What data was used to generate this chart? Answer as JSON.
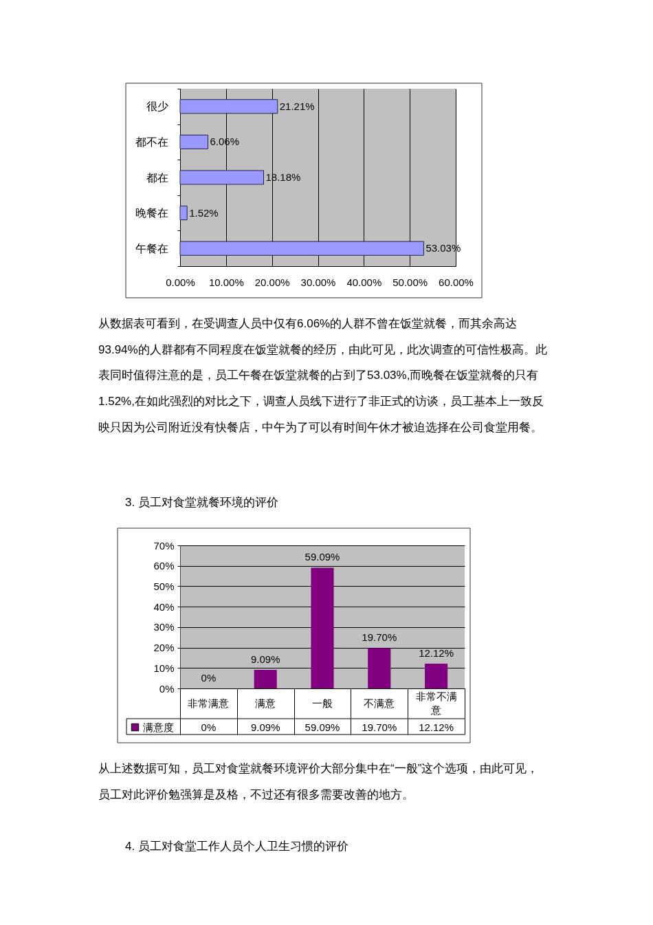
{
  "chart_data": [
    {
      "type": "bar",
      "orientation": "horizontal",
      "categories": [
        "很少",
        "都不在",
        "都在",
        "晚餐在",
        "午餐在"
      ],
      "values": [
        21.21,
        6.06,
        18.18,
        1.52,
        53.03
      ],
      "color": "#9999ff",
      "value_labels": [
        "21.21%",
        "6.06%",
        "18.18%",
        "1.52%",
        "53.03%"
      ],
      "xlim": [
        0,
        60
      ],
      "xticks": [
        {
          "value": 0,
          "label": "0.00%"
        },
        {
          "value": 10,
          "label": "10.00%"
        },
        {
          "value": 20,
          "label": "20.00%"
        },
        {
          "value": 30,
          "label": "30.00%"
        },
        {
          "value": 40,
          "label": "40.00%"
        },
        {
          "value": 50,
          "label": "50.00%"
        },
        {
          "value": 60,
          "label": "60.00%"
        }
      ],
      "grid": "x",
      "annotations": [
        "从数据表可看到，在受调查人员中仅有6.06%的人群不曾在饭堂就餐，而其余高达93.94%的人群都有不同程度在饭堂就餐的经历，由此可见，此次调查的可信性极高。此表同时值得注意的是，员工午餐在饭堂就餐的占到了53.03%,而晚餐在饭堂就餐的只有1.52%,在如此强烈的对比之下，调查人员线下进行了非正式的访谈，员工基本上一致反映只因为公司附近没有快餐店，中午为了可以有时间午休才被迫选择在公司食堂用餐。"
      ]
    },
    {
      "type": "bar",
      "title": "3. 员工对食堂就餐环境的评价",
      "categories": [
        "非常满意",
        "满意",
        "一般",
        "不满意",
        "非常不满意"
      ],
      "series": [
        {
          "name": "满意度",
          "color": "#800080",
          "values": [
            0,
            9.09,
            59.09,
            19.7,
            12.12
          ],
          "value_labels": [
            "0%",
            "9.09%",
            "59.09%",
            "19.70%",
            "12.12%"
          ]
        }
      ],
      "ylim": [
        0,
        70
      ],
      "yticks": [
        {
          "value": 0,
          "label": "0%"
        },
        {
          "value": 10,
          "label": "10%"
        },
        {
          "value": 20,
          "label": "20%"
        },
        {
          "value": 30,
          "label": "30%"
        },
        {
          "value": 40,
          "label": "40%"
        },
        {
          "value": 50,
          "label": "50%"
        },
        {
          "value": 60,
          "label": "60%"
        },
        {
          "value": 70,
          "label": "70%"
        }
      ],
      "grid": "y",
      "legend": "bottom left",
      "annotations": [
        "从上述数据可知，员工对食堂就餐环境评价大部分集中在“一般”这个选项，由此可见，员工对此评价勉强算是及格，不过还有很多需要改善的地方。",
        "4. 员工对食堂工作人员个人卫生习惯的评价"
      ]
    }
  ]
}
